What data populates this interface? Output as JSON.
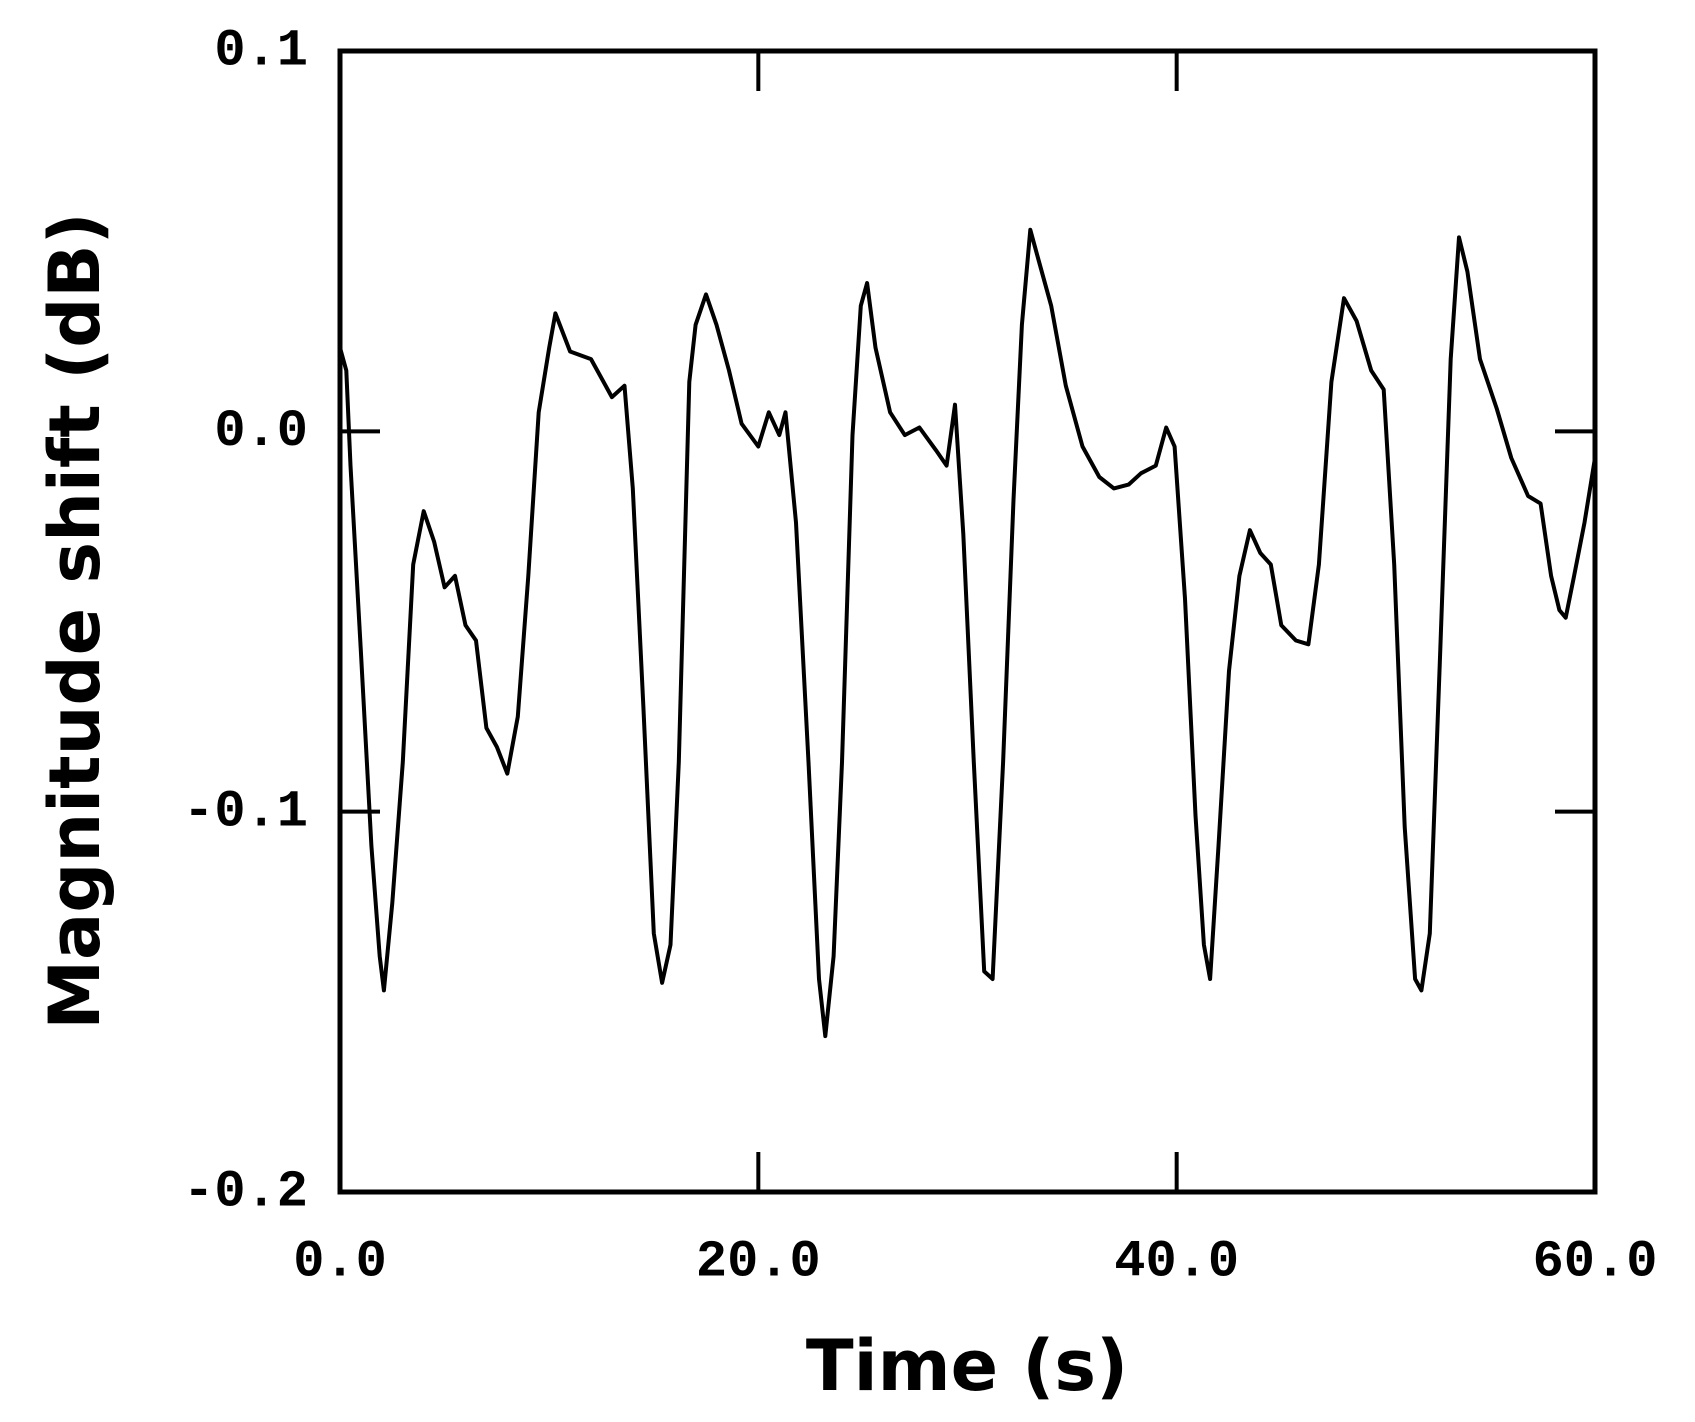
{
  "chart_data": {
    "type": "line",
    "xlabel": "Time (s)",
    "ylabel": "Magnitude shift (dB)",
    "xlim": [
      0,
      60
    ],
    "ylim": [
      -0.2,
      0.1
    ],
    "xticks": [
      {
        "value": 0,
        "label": "0.0"
      },
      {
        "value": 20,
        "label": "20.0"
      },
      {
        "value": 40,
        "label": "40.0"
      },
      {
        "value": 60,
        "label": "60.0"
      }
    ],
    "yticks": [
      0.1,
      {
        "value": 0,
        "label": "0.0"
      },
      -0.1,
      -0.2
    ],
    "series": [
      {
        "color": "#000000",
        "x": [
          0,
          0.3,
          0.5,
          1,
          1.5,
          1.9,
          2.1,
          2.5,
          3,
          3.5,
          4,
          4.5,
          5,
          5.5,
          6,
          6.5,
          7,
          7.5,
          8,
          8.5,
          9,
          9.5,
          10,
          10.3,
          11,
          12,
          13,
          13.6,
          14,
          14.5,
          15,
          15.4,
          15.8,
          16.2,
          16.7,
          17,
          17.5,
          18,
          18.6,
          19.2,
          20,
          20.5,
          21,
          21.3,
          21.8,
          22.4,
          22.9,
          23.2,
          23.6,
          24,
          24.5,
          24.9,
          25.2,
          25.6,
          26.3,
          27,
          27.7,
          28.5,
          29,
          29.4,
          29.8,
          30.3,
          30.8,
          31.2,
          31.7,
          32.2,
          32.6,
          33,
          33.4,
          34,
          34.7,
          35.5,
          36.3,
          37,
          37.7,
          38.3,
          39,
          39.5,
          39.9,
          40.4,
          40.9,
          41.3,
          41.6,
          42,
          42.5,
          43,
          43.5,
          44,
          44.5,
          45,
          45.7,
          46.3,
          46.8,
          47.4,
          48,
          48.6,
          49.3,
          49.9,
          50.4,
          50.9,
          51.4,
          51.7,
          52.1,
          52.6,
          53.1,
          53.5,
          53.9,
          54.5,
          55.3,
          56,
          56.8,
          57.4,
          57.9,
          58.3,
          58.6,
          59,
          59.5,
          60
        ],
        "values": [
          0.022,
          0.016,
          -0.009,
          -0.058,
          -0.109,
          -0.138,
          -0.147,
          -0.124,
          -0.087,
          -0.035,
          -0.021,
          -0.029,
          -0.041,
          -0.038,
          -0.051,
          -0.055,
          -0.078,
          -0.083,
          -0.09,
          -0.075,
          -0.038,
          0.005,
          0.022,
          0.031,
          0.021,
          0.019,
          0.009,
          0.012,
          -0.015,
          -0.072,
          -0.132,
          -0.145,
          -0.135,
          -0.087,
          0.013,
          0.028,
          0.036,
          0.028,
          0.016,
          0.002,
          -0.004,
          0.005,
          -0.001,
          0.005,
          -0.024,
          -0.087,
          -0.144,
          -0.159,
          -0.138,
          -0.087,
          -0.001,
          0.033,
          0.039,
          0.022,
          0.005,
          -0.001,
          0.001,
          -0.005,
          -0.009,
          0.007,
          -0.027,
          -0.087,
          -0.142,
          -0.144,
          -0.087,
          -0.018,
          0.028,
          0.053,
          0.045,
          0.033,
          0.012,
          -0.004,
          -0.012,
          -0.015,
          -0.014,
          -0.011,
          -0.009,
          0.001,
          -0.004,
          -0.044,
          -0.101,
          -0.135,
          -0.144,
          -0.109,
          -0.063,
          -0.038,
          -0.026,
          -0.032,
          -0.035,
          -0.051,
          -0.055,
          -0.056,
          -0.035,
          0.013,
          0.035,
          0.029,
          0.016,
          0.011,
          -0.035,
          -0.104,
          -0.144,
          -0.147,
          -0.132,
          -0.058,
          0.019,
          0.051,
          0.042,
          0.019,
          0.006,
          -0.007,
          -0.017,
          -0.019,
          -0.038,
          -0.047,
          -0.049,
          -0.038,
          -0.024,
          -0.007
        ]
      }
    ]
  }
}
